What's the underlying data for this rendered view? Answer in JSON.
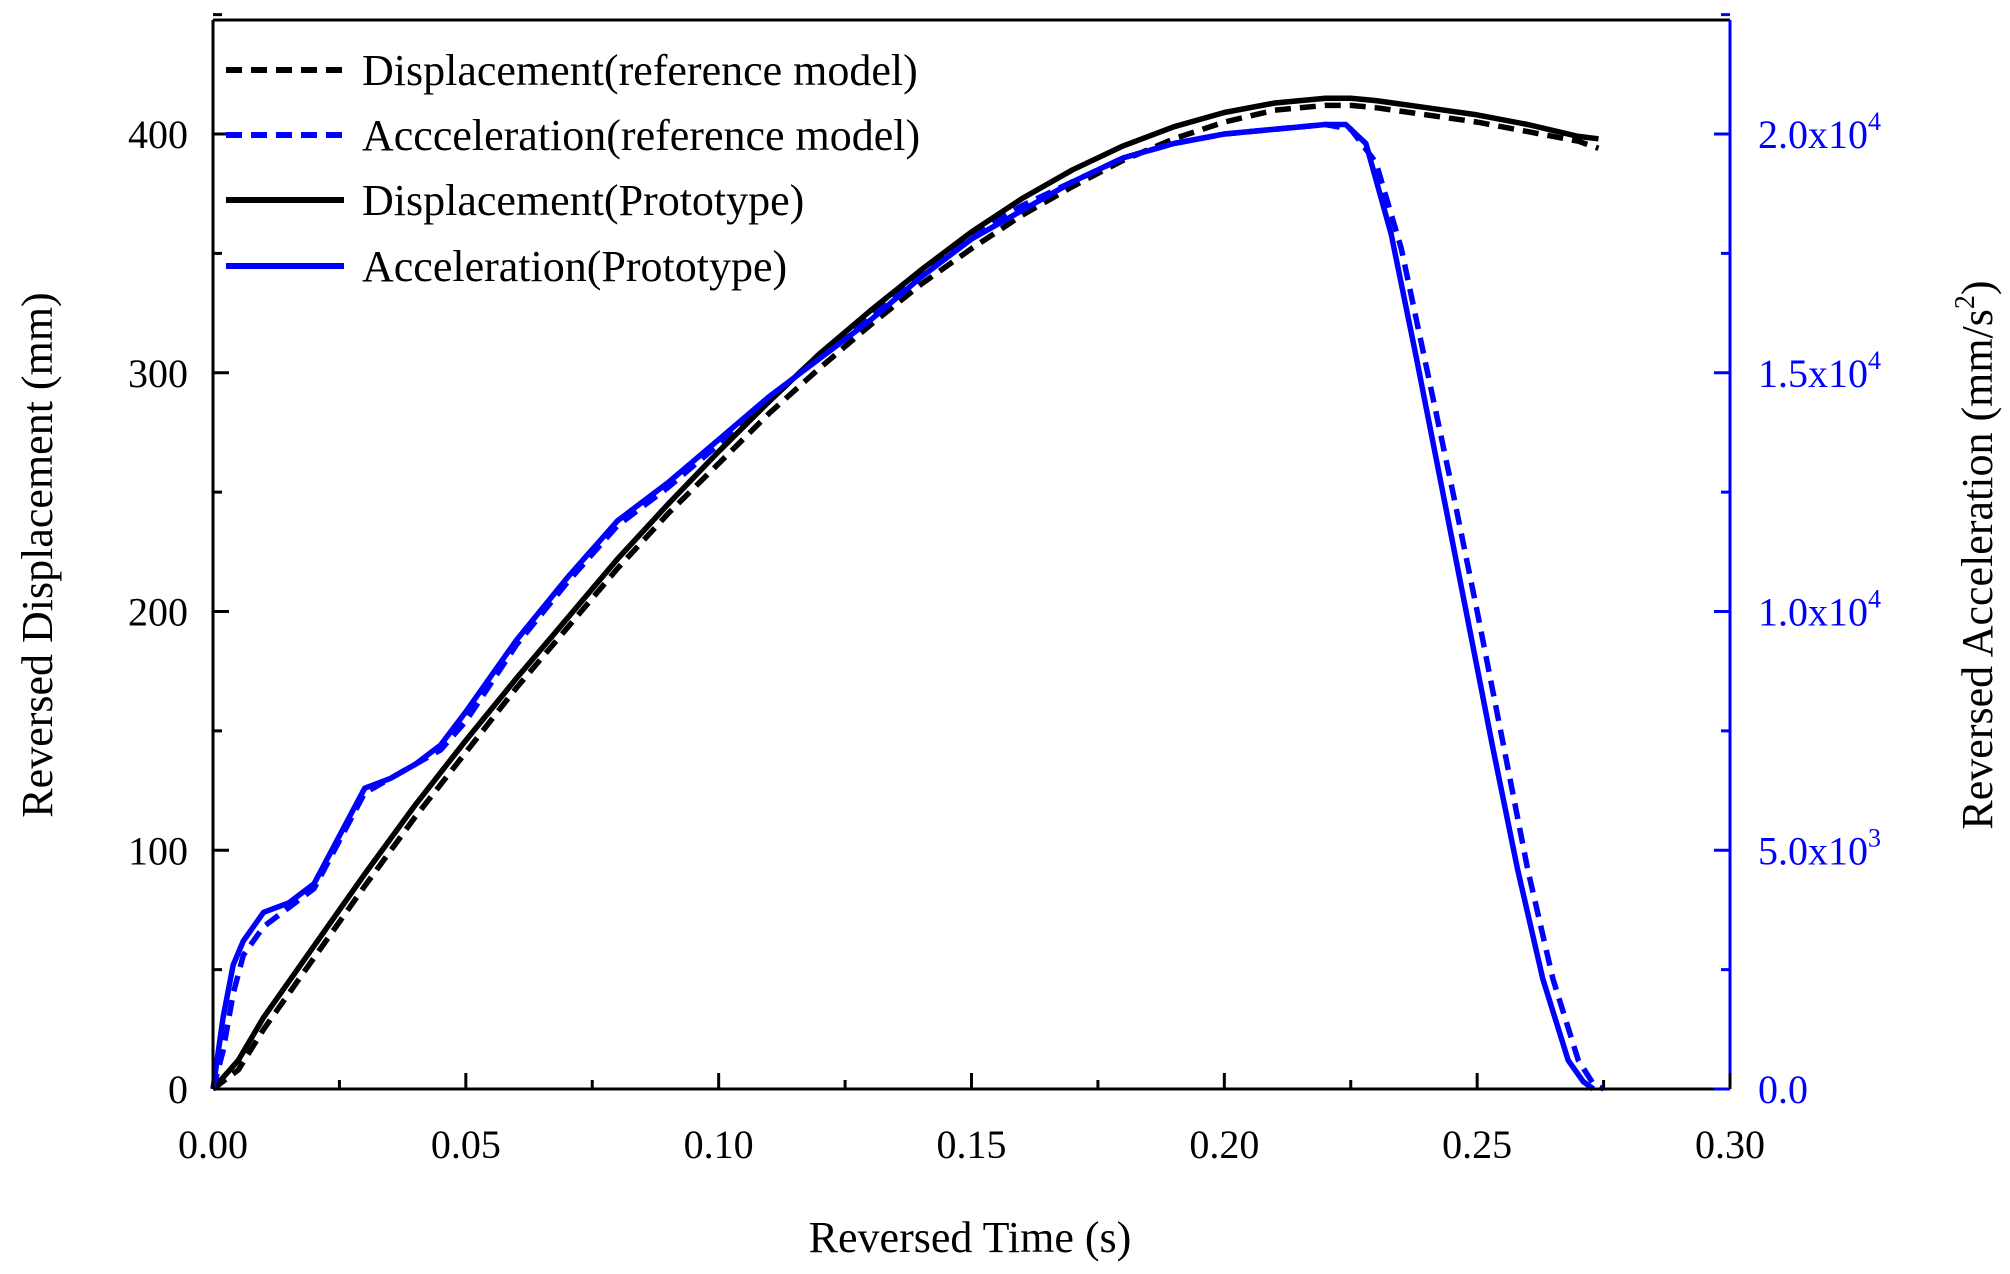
{
  "chart_data": {
    "type": "line",
    "xlabel": "Reversed Time (s)",
    "ylabel_left": "Reversed Displacement (mm)",
    "ylabel_right_prefix": "Reversed Acceleration (mm/s",
    "ylabel_right_sup": "2",
    "ylabel_right_suffix": ")",
    "xlim": [
      0,
      0.3
    ],
    "ylim_left": [
      0,
      450
    ],
    "ylim_right": [
      0,
      22500
    ],
    "x_ticks": [
      0.0,
      0.05,
      0.1,
      0.15,
      0.2,
      0.25,
      0.3
    ],
    "x_tick_labels": [
      "0.00",
      "0.05",
      "0.10",
      "0.15",
      "0.20",
      "0.25",
      "0.30"
    ],
    "y_left_ticks": [
      0,
      100,
      200,
      300,
      400
    ],
    "y_left_tick_labels": [
      "0",
      "100",
      "200",
      "300",
      "400"
    ],
    "y_right_ticks": [
      0,
      5000,
      10000,
      15000,
      20000
    ],
    "y_right_tick_labels": [
      {
        "mant": "0.0",
        "exp": ""
      },
      {
        "mant": "5.0x10",
        "exp": "3"
      },
      {
        "mant": "1.0x10",
        "exp": "4"
      },
      {
        "mant": "1.5x10",
        "exp": "4"
      },
      {
        "mant": "2.0x10",
        "exp": "4"
      }
    ],
    "colors": {
      "displacement": "#000000",
      "acceleration": "#0000ff",
      "axis": "#000000",
      "right_axis": "#0000ff"
    },
    "legend_position": "top-left",
    "series": [
      {
        "name": "Displacement(reference model)",
        "axis": "left",
        "color": "#000000",
        "dash": true,
        "x": [
          0.0,
          0.005,
          0.01,
          0.02,
          0.03,
          0.04,
          0.05,
          0.06,
          0.07,
          0.08,
          0.09,
          0.1,
          0.11,
          0.12,
          0.13,
          0.14,
          0.15,
          0.16,
          0.17,
          0.18,
          0.19,
          0.2,
          0.21,
          0.22,
          0.225,
          0.23,
          0.24,
          0.25,
          0.26,
          0.27,
          0.274
        ],
        "y": [
          0,
          8,
          25,
          55,
          85,
          114,
          141,
          168,
          193,
          218,
          241,
          262,
          283,
          302,
          320,
          337,
          352,
          366,
          378,
          389,
          398,
          405,
          410,
          412,
          412,
          411,
          408,
          405,
          401,
          397,
          394
        ]
      },
      {
        "name": "Accceleration(reference model)",
        "axis": "right",
        "color": "#0000ff",
        "dash": true,
        "x": [
          0.0,
          0.002,
          0.004,
          0.006,
          0.01,
          0.015,
          0.02,
          0.025,
          0.03,
          0.035,
          0.04,
          0.045,
          0.05,
          0.06,
          0.07,
          0.08,
          0.09,
          0.1,
          0.11,
          0.12,
          0.13,
          0.14,
          0.15,
          0.16,
          0.17,
          0.18,
          0.19,
          0.2,
          0.21,
          0.22,
          0.225,
          0.23,
          0.235,
          0.24,
          0.245,
          0.25,
          0.255,
          0.26,
          0.265,
          0.27,
          0.273,
          0.275
        ],
        "y": [
          0,
          800,
          2000,
          2800,
          3400,
          3800,
          4200,
          5200,
          6200,
          6500,
          6800,
          7100,
          7700,
          9300,
          10600,
          11800,
          12600,
          13500,
          14400,
          15400,
          16200,
          17100,
          17900,
          18500,
          19000,
          19500,
          19800,
          20000,
          20100,
          20200,
          20100,
          19400,
          17600,
          15100,
          12600,
          10000,
          7300,
          4600,
          2300,
          600,
          100,
          0
        ]
      },
      {
        "name": "Displacement(Prototype)",
        "axis": "left",
        "color": "#000000",
        "dash": false,
        "x": [
          0.0,
          0.005,
          0.01,
          0.02,
          0.03,
          0.04,
          0.05,
          0.06,
          0.07,
          0.08,
          0.09,
          0.1,
          0.11,
          0.12,
          0.13,
          0.14,
          0.15,
          0.16,
          0.17,
          0.18,
          0.19,
          0.2,
          0.21,
          0.22,
          0.225,
          0.23,
          0.24,
          0.25,
          0.26,
          0.27,
          0.274
        ],
        "y": [
          0,
          12,
          30,
          60,
          90,
          119,
          146,
          172,
          197,
          222,
          245,
          267,
          288,
          308,
          326,
          343,
          359,
          373,
          385,
          395,
          403,
          409,
          413,
          415,
          415,
          414,
          411,
          408,
          404,
          399,
          398
        ]
      },
      {
        "name": "Acceleration(Prototype)",
        "axis": "right",
        "color": "#0000ff",
        "dash": false,
        "x": [
          0.0,
          0.002,
          0.004,
          0.006,
          0.01,
          0.015,
          0.02,
          0.025,
          0.03,
          0.035,
          0.04,
          0.045,
          0.05,
          0.06,
          0.07,
          0.08,
          0.09,
          0.1,
          0.11,
          0.12,
          0.13,
          0.14,
          0.15,
          0.16,
          0.17,
          0.18,
          0.19,
          0.2,
          0.21,
          0.22,
          0.224,
          0.228,
          0.233,
          0.238,
          0.243,
          0.248,
          0.253,
          0.258,
          0.263,
          0.268,
          0.271,
          0.273
        ],
        "y": [
          0,
          1500,
          2600,
          3100,
          3700,
          3900,
          4300,
          5300,
          6300,
          6500,
          6800,
          7200,
          7900,
          9400,
          10700,
          11900,
          12700,
          13600,
          14500,
          15300,
          16100,
          17000,
          17800,
          18400,
          19000,
          19500,
          19800,
          20000,
          20100,
          20200,
          20200,
          19800,
          17900,
          15300,
          12600,
          9900,
          7200,
          4600,
          2300,
          600,
          150,
          0
        ]
      }
    ]
  }
}
